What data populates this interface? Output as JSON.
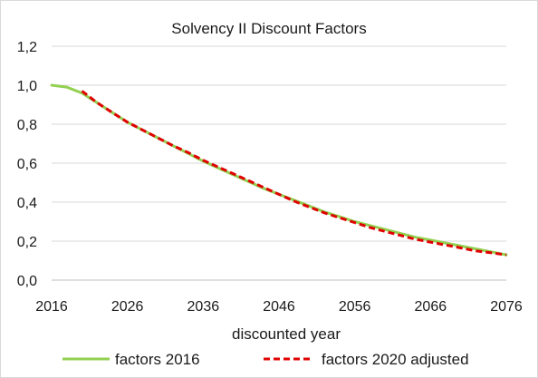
{
  "chart_data": {
    "type": "line",
    "title": "Solvency II Discount Factors",
    "xlabel": "discounted year",
    "ylabel": "",
    "xlim": [
      2016,
      2076
    ],
    "ylim": [
      0,
      1.2
    ],
    "x_ticks": [
      "2016",
      "2026",
      "2036",
      "2046",
      "2056",
      "2066",
      "2076"
    ],
    "y_ticks": [
      "0,0",
      "0,2",
      "0,4",
      "0,6",
      "0,8",
      "1,0",
      "1,2"
    ],
    "grid": "horizontal",
    "legend_position": "bottom",
    "series": [
      {
        "name": "factors 2016",
        "color": "#92d050",
        "style": "solid",
        "x": [
          2016,
          2018,
          2020,
          2022,
          2024,
          2026,
          2028,
          2030,
          2032,
          2034,
          2036,
          2038,
          2040,
          2042,
          2044,
          2046,
          2048,
          2050,
          2052,
          2054,
          2056,
          2058,
          2060,
          2062,
          2064,
          2066,
          2068,
          2070,
          2072,
          2074,
          2076
        ],
        "values": [
          1.0,
          0.99,
          0.96,
          0.91,
          0.86,
          0.81,
          0.77,
          0.73,
          0.69,
          0.65,
          0.61,
          0.575,
          0.54,
          0.505,
          0.47,
          0.44,
          0.41,
          0.38,
          0.35,
          0.325,
          0.3,
          0.28,
          0.26,
          0.24,
          0.22,
          0.205,
          0.19,
          0.175,
          0.16,
          0.145,
          0.13
        ]
      },
      {
        "name": "factors 2020 adjusted",
        "color": "#e00000",
        "style": "dashed",
        "x": [
          2020,
          2022,
          2024,
          2026,
          2028,
          2030,
          2032,
          2034,
          2036,
          2038,
          2040,
          2042,
          2044,
          2046,
          2048,
          2050,
          2052,
          2054,
          2056,
          2058,
          2060,
          2062,
          2064,
          2066,
          2068,
          2070,
          2072,
          2074,
          2076
        ],
        "values": [
          0.97,
          0.91,
          0.86,
          0.81,
          0.77,
          0.73,
          0.69,
          0.655,
          0.615,
          0.58,
          0.545,
          0.51,
          0.475,
          0.44,
          0.405,
          0.375,
          0.345,
          0.32,
          0.295,
          0.27,
          0.25,
          0.23,
          0.21,
          0.195,
          0.18,
          0.165,
          0.15,
          0.14,
          0.13
        ]
      }
    ]
  }
}
